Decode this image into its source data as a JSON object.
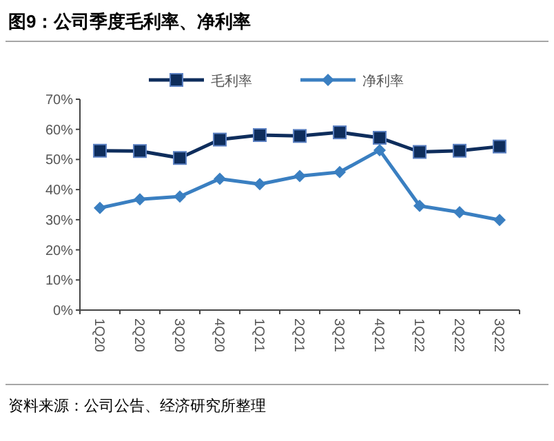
{
  "chart_data": {
    "type": "line",
    "title": "图9：公司季度毛利率、净利率",
    "categories": [
      "1Q20",
      "2Q20",
      "3Q20",
      "4Q20",
      "1Q21",
      "2Q21",
      "3Q21",
      "4Q21",
      "1Q22",
      "2Q22",
      "3Q22"
    ],
    "series": [
      {
        "name": "毛利率",
        "color": "#0e2d5c",
        "marker": "square",
        "values": [
          52.9,
          52.8,
          50.5,
          56.6,
          58.1,
          57.8,
          59.0,
          57.2,
          52.5,
          52.9,
          54.3
        ]
      },
      {
        "name": "净利率",
        "color": "#3a7fc1",
        "marker": "diamond",
        "values": [
          33.9,
          36.8,
          37.7,
          43.6,
          41.8,
          44.5,
          45.8,
          53.1,
          34.6,
          32.5,
          29.9
        ]
      }
    ],
    "ylim": [
      0,
      70
    ],
    "yticks": [
      {
        "value": 0,
        "label": "0%"
      },
      {
        "value": 10,
        "label": "10%"
      },
      {
        "value": 20,
        "label": "20%"
      },
      {
        "value": 30,
        "label": "30%"
      },
      {
        "value": 40,
        "label": "40%"
      },
      {
        "value": 50,
        "label": "50%"
      },
      {
        "value": 60,
        "label": "60%"
      },
      {
        "value": 70,
        "label": "70%"
      }
    ],
    "grid": false,
    "legend": "top",
    "line_style": "solid",
    "annotations": [
      "资料来源：公司公告、经济研究所整理"
    ]
  }
}
